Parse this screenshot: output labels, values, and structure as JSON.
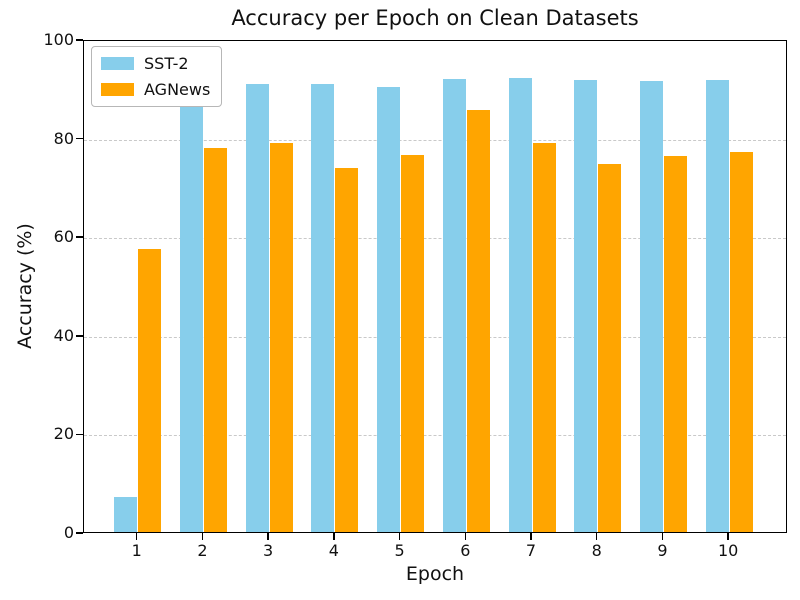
{
  "chart_data": {
    "type": "bar",
    "title": "Accuracy per Epoch on Clean Datasets",
    "xlabel": "Epoch",
    "ylabel": "Accuracy (%)",
    "categories": [
      "1",
      "2",
      "3",
      "4",
      "5",
      "6",
      "7",
      "8",
      "9",
      "10"
    ],
    "series": [
      {
        "name": "SST-2",
        "color": "#87CEEB",
        "values": [
          7.1,
          87.6,
          90.9,
          90.9,
          90.2,
          91.9,
          92.1,
          91.7,
          91.5,
          91.7
        ]
      },
      {
        "name": "AGNews",
        "color": "#FFA500",
        "values": [
          57.4,
          77.9,
          79.0,
          73.9,
          76.4,
          85.7,
          78.9,
          74.6,
          76.3,
          77.0
        ]
      }
    ],
    "ylim": [
      0,
      100
    ],
    "yticks": [
      0,
      20,
      40,
      60,
      80,
      100
    ],
    "grid": "horizontal-dashed",
    "legend_position": "upper-left",
    "gridline_color": "#c9c9c9",
    "background_color": "#ffffff"
  }
}
